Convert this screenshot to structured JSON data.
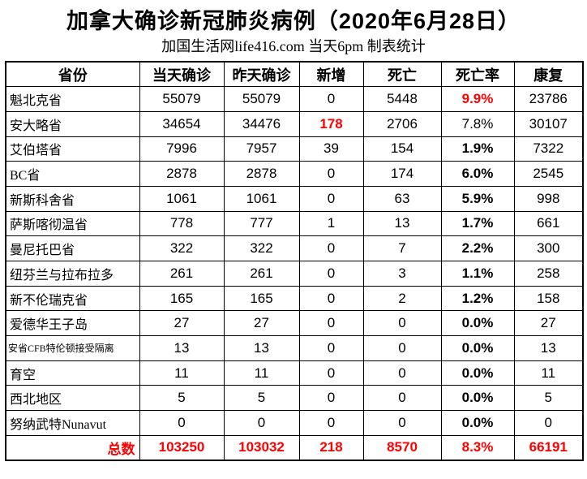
{
  "title": "加拿大确诊新冠肺炎病例（2020年6月28日）",
  "subtitle": "加国生活网life416.com 当天6pm 制表统计",
  "colors": {
    "accent_red": "#ff0000",
    "text": "#000000",
    "border": "#000000",
    "background": "#ffffff"
  },
  "chart_data": {
    "type": "table",
    "title": "加拿大确诊新冠肺炎病例（2020年6月28日）",
    "subtitle": "加国生活网life416.com 当天6pm 制表统计",
    "columns": [
      "省份",
      "当天确诊",
      "昨天确诊",
      "新增",
      "死亡",
      "死亡率",
      "康复"
    ],
    "rows": [
      {
        "province": "魁北克省",
        "today": "55079",
        "yesterday": "55079",
        "new_cases": "0",
        "deaths": "5448",
        "death_rate": "9.9%",
        "recovered": "23786",
        "new_red": false,
        "rate_red": true,
        "rate_bold": true,
        "small": false
      },
      {
        "province": "安大略省",
        "today": "34654",
        "yesterday": "34476",
        "new_cases": "178",
        "deaths": "2706",
        "death_rate": "7.8%",
        "recovered": "30107",
        "new_red": true,
        "rate_red": false,
        "rate_bold": false,
        "small": false
      },
      {
        "province": "艾伯塔省",
        "today": "7996",
        "yesterday": "7957",
        "new_cases": "39",
        "deaths": "154",
        "death_rate": "1.9%",
        "recovered": "7322",
        "new_red": false,
        "rate_red": false,
        "rate_bold": true,
        "small": false
      },
      {
        "province": "BC省",
        "today": "2878",
        "yesterday": "2878",
        "new_cases": "0",
        "deaths": "174",
        "death_rate": "6.0%",
        "recovered": "2545",
        "new_red": false,
        "rate_red": false,
        "rate_bold": true,
        "small": false
      },
      {
        "province": "新斯科舍省",
        "today": "1061",
        "yesterday": "1061",
        "new_cases": "0",
        "deaths": "63",
        "death_rate": "5.9%",
        "recovered": "998",
        "new_red": false,
        "rate_red": false,
        "rate_bold": true,
        "small": false
      },
      {
        "province": "萨斯喀彻温省",
        "today": "778",
        "yesterday": "777",
        "new_cases": "1",
        "deaths": "13",
        "death_rate": "1.7%",
        "recovered": "661",
        "new_red": false,
        "rate_red": false,
        "rate_bold": true,
        "small": false
      },
      {
        "province": "曼尼托巴省",
        "today": "322",
        "yesterday": "322",
        "new_cases": "0",
        "deaths": "7",
        "death_rate": "2.2%",
        "recovered": "300",
        "new_red": false,
        "rate_red": false,
        "rate_bold": true,
        "small": false
      },
      {
        "province": "纽芬兰与拉布拉多",
        "today": "261",
        "yesterday": "261",
        "new_cases": "0",
        "deaths": "3",
        "death_rate": "1.1%",
        "recovered": "258",
        "new_red": false,
        "rate_red": false,
        "rate_bold": true,
        "small": false
      },
      {
        "province": "新不伦瑞克省",
        "today": "165",
        "yesterday": "165",
        "new_cases": "0",
        "deaths": "2",
        "death_rate": "1.2%",
        "recovered": "158",
        "new_red": false,
        "rate_red": false,
        "rate_bold": true,
        "small": false
      },
      {
        "province": "爱德华王子岛",
        "today": "27",
        "yesterday": "27",
        "new_cases": "0",
        "deaths": "0",
        "death_rate": "0.0%",
        "recovered": "27",
        "new_red": false,
        "rate_red": false,
        "rate_bold": true,
        "small": false
      },
      {
        "province": "安省CFB特伦顿接受隔离",
        "today": "13",
        "yesterday": "13",
        "new_cases": "0",
        "deaths": "0",
        "death_rate": "0.0%",
        "recovered": "13",
        "new_red": false,
        "rate_red": false,
        "rate_bold": true,
        "small": true
      },
      {
        "province": "育空",
        "today": "11",
        "yesterday": "11",
        "new_cases": "0",
        "deaths": "0",
        "death_rate": "0.0%",
        "recovered": "11",
        "new_red": false,
        "rate_red": false,
        "rate_bold": true,
        "small": false
      },
      {
        "province": "西北地区",
        "today": "5",
        "yesterday": "5",
        "new_cases": "0",
        "deaths": "0",
        "death_rate": "0.0%",
        "recovered": "5",
        "new_red": false,
        "rate_red": false,
        "rate_bold": true,
        "small": false
      },
      {
        "province": "努纳武特Nunavut",
        "today": "0",
        "yesterday": "0",
        "new_cases": "0",
        "deaths": "0",
        "death_rate": "0.0%",
        "recovered": "0",
        "new_red": false,
        "rate_red": false,
        "rate_bold": true,
        "small": false
      }
    ],
    "total": {
      "label": "总数",
      "today": "103250",
      "yesterday": "103032",
      "new_cases": "218",
      "deaths": "8570",
      "death_rate": "8.3%",
      "recovered": "66191"
    },
    "layout": {
      "grid": "full-borders",
      "legend": "none",
      "emphasis_color_meaning": "red = notable increase / totals"
    }
  }
}
